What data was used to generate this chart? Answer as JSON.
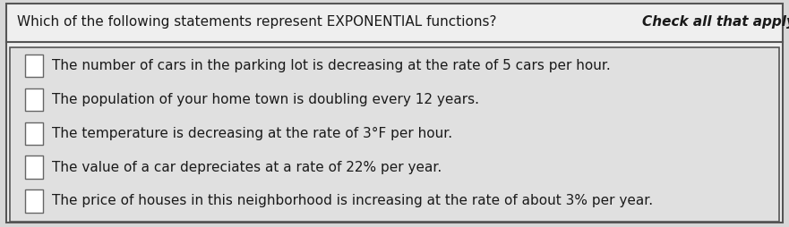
{
  "title_normal": "Which of the following statements represent EXPONENTIAL functions? ",
  "title_italic": "Check all that apply.",
  "bg_color": "#d8d8d8",
  "title_bg": "#efefef",
  "inner_bg": "#e0e0e0",
  "border_color": "#555555",
  "text_color": "#1a1a1a",
  "checkbox_color": "#ffffff",
  "checkbox_border": "#666666",
  "items": [
    "The number of cars in the parking lot is decreasing at the rate of 5 cars per hour.",
    "The population of your home town is doubling every 12 years.",
    "The temperature is decreasing at the rate of 3°F per hour.",
    "The value of a car depreciates at a rate of 22% per year.",
    "The price of houses in this neighborhood is increasing at the rate of about 3% per year."
  ],
  "title_fontsize": 11.0,
  "item_fontsize": 11.0,
  "figsize": [
    8.81,
    2.54
  ],
  "dpi": 100
}
